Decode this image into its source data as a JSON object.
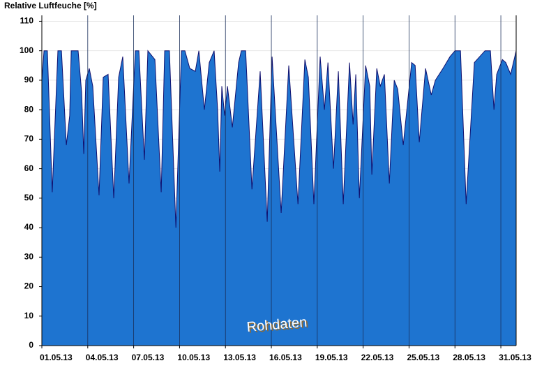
{
  "chart_data": {
    "type": "area",
    "title": "Relative Luftfeuche [%]",
    "annotation": "Rohdaten",
    "color": "#1e74d0",
    "line_color": "#10106e",
    "grid": true,
    "x": [
      1.0,
      1.14,
      1.36,
      1.68,
      2.05,
      2.28,
      2.6,
      2.82,
      2.92,
      3.37,
      3.6,
      3.74,
      3.87,
      4.1,
      4.33,
      4.74,
      5.01,
      5.33,
      5.7,
      6.02,
      6.29,
      6.7,
      7.11,
      7.34,
      7.7,
      7.93,
      8.39,
      8.8,
      9.03,
      9.34,
      9.76,
      10.12,
      10.35,
      10.67,
      11.03,
      11.26,
      11.62,
      11.94,
      12.26,
      12.49,
      12.63,
      12.76,
      12.95,
      13.13,
      13.45,
      13.86,
      14.04,
      14.32,
      14.73,
      15.27,
      15.73,
      16.05,
      16.64,
      17.14,
      17.74,
      18.19,
      18.42,
      18.78,
      19.19,
      19.47,
      19.7,
      20.06,
      20.38,
      20.7,
      21.11,
      21.34,
      21.52,
      21.75,
      22.16,
      22.43,
      22.57,
      22.89,
      23.12,
      23.39,
      23.71,
      24.03,
      24.26,
      24.62,
      25.17,
      25.4,
      25.67,
      26.08,
      26.45,
      26.72,
      27.22,
      27.68,
      28.0,
      28.36,
      28.73,
      29.27,
      29.96,
      30.32,
      30.55,
      30.73,
      31.1,
      31.32,
      31.64,
      32.0
    ],
    "values": [
      90,
      100,
      100,
      52,
      100,
      100,
      68,
      78,
      100,
      100,
      86,
      65,
      90,
      94,
      88,
      51,
      91,
      92,
      50,
      91,
      98,
      55,
      100,
      100,
      63,
      100,
      97,
      52,
      100,
      100,
      40,
      100,
      100,
      94,
      93,
      100,
      80,
      96,
      100,
      80,
      59,
      88,
      78,
      88,
      74,
      96,
      100,
      100,
      53,
      93,
      42,
      98,
      45,
      95,
      48,
      97,
      91,
      48,
      98,
      80,
      96,
      60,
      93,
      48,
      96,
      75,
      92,
      50,
      95,
      88,
      58,
      94,
      88,
      92,
      55,
      90,
      87,
      68,
      96,
      95,
      69,
      94,
      85,
      90,
      94,
      98,
      100,
      100,
      48,
      96,
      100,
      100,
      80,
      92,
      97,
      96,
      92,
      100
    ],
    "xlim": [
      1,
      32
    ],
    "xticks": [
      {
        "value": 1,
        "label": "01.05.13"
      },
      {
        "value": 4,
        "label": "04.05.13"
      },
      {
        "value": 7,
        "label": "07.05.13"
      },
      {
        "value": 10,
        "label": "10.05.13"
      },
      {
        "value": 13,
        "label": "13.05.13"
      },
      {
        "value": 16,
        "label": "16.05.13"
      },
      {
        "value": 19,
        "label": "19.05.13"
      },
      {
        "value": 22,
        "label": "22.05.13"
      },
      {
        "value": 25,
        "label": "25.05.13"
      },
      {
        "value": 28,
        "label": "28.05.13"
      },
      {
        "value": 31,
        "label": "31.05.13"
      }
    ],
    "ylim": [
      0,
      112
    ],
    "yticks": [
      0,
      10,
      20,
      30,
      40,
      50,
      60,
      70,
      80,
      90,
      100,
      110
    ]
  }
}
